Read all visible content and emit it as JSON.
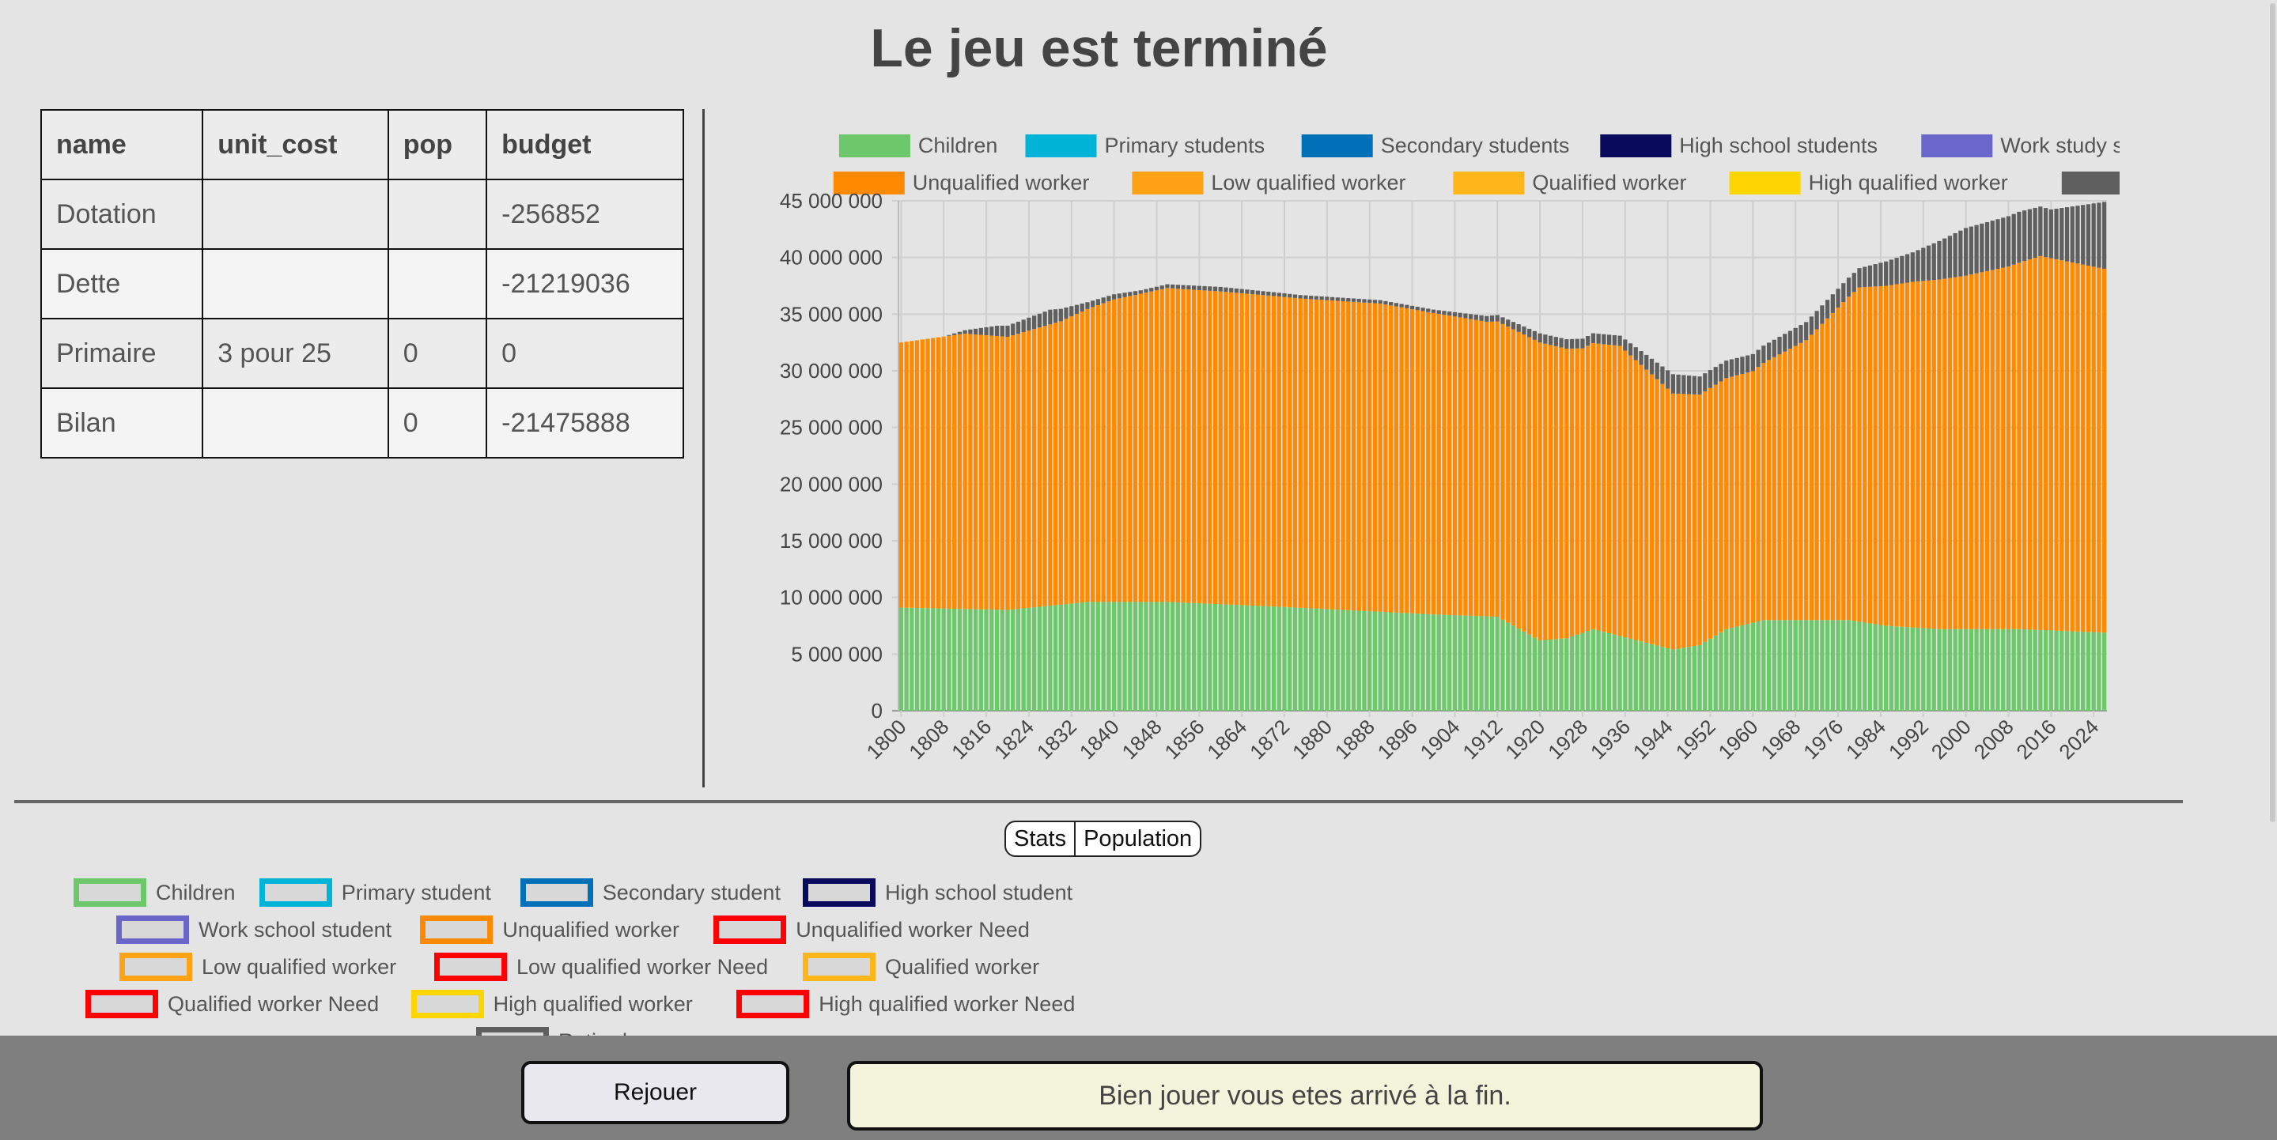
{
  "page": {
    "title": "Le jeu est terminé"
  },
  "budget_table": {
    "headers": [
      "name",
      "unit_cost",
      "pop",
      "budget"
    ],
    "rows": [
      [
        "Dotation",
        "",
        "",
        "-256852"
      ],
      [
        "Dette",
        "",
        "",
        "-21219036"
      ],
      [
        "Primaire",
        "3 pour 25",
        "0",
        "0"
      ],
      [
        "Bilan",
        "",
        "0",
        "-21475888"
      ]
    ]
  },
  "chart_data": {
    "type": "bar",
    "stacked": true,
    "x_start": 1800,
    "x_end": 2026,
    "x_step": 1,
    "x_tick_labels": [
      "1800",
      "1808",
      "1816",
      "1824",
      "1832",
      "1840",
      "1848",
      "1856",
      "1864",
      "1872",
      "1880",
      "1888",
      "1896",
      "1904",
      "1912",
      "1920",
      "1928",
      "1936",
      "1944",
      "1952",
      "1960",
      "1968",
      "1976",
      "1984",
      "1992",
      "2000",
      "2008",
      "2016",
      "2024"
    ],
    "y_ticks": [
      "0",
      "5 000 000",
      "10 000 000",
      "15 000 000",
      "20 000 000",
      "25 000 000",
      "30 000 000",
      "35 000 000",
      "40 000 000",
      "45 000 000"
    ],
    "ylim": [
      0,
      45000000
    ],
    "grid": true,
    "legend_position": "top",
    "series": [
      {
        "name": "Children",
        "color": "#6cc86a",
        "anchors": [
          [
            1800,
            9100000
          ],
          [
            1820,
            8900000
          ],
          [
            1835,
            9600000
          ],
          [
            1850,
            9600000
          ],
          [
            1870,
            9200000
          ],
          [
            1900,
            8500000
          ],
          [
            1912,
            8300000
          ],
          [
            1920,
            6200000
          ],
          [
            1925,
            6400000
          ],
          [
            1930,
            7200000
          ],
          [
            1945,
            5400000
          ],
          [
            1950,
            5800000
          ],
          [
            1955,
            7200000
          ],
          [
            1962,
            8000000
          ],
          [
            1978,
            8000000
          ],
          [
            1985,
            7500000
          ],
          [
            1995,
            7200000
          ],
          [
            2010,
            7200000
          ],
          [
            2026,
            6900000
          ]
        ]
      },
      {
        "name": "Primary students",
        "color": "#00b4d8",
        "anchors": [
          [
            1800,
            0
          ],
          [
            2026,
            0
          ]
        ]
      },
      {
        "name": "Secondary students",
        "color": "#0070b8",
        "anchors": [
          [
            1800,
            0
          ],
          [
            2026,
            0
          ]
        ]
      },
      {
        "name": "High school students",
        "color": "#0a0a5c",
        "anchors": [
          [
            1800,
            0
          ],
          [
            2026,
            0
          ]
        ]
      },
      {
        "name": "Work study students",
        "color": "#6b66c9",
        "anchors": [
          [
            1800,
            0
          ],
          [
            2026,
            0
          ]
        ]
      },
      {
        "name": "Unqualified worker",
        "color": "#ff8a00",
        "anchors": [
          [
            1800,
            23400000
          ],
          [
            1812,
            24300000
          ],
          [
            1820,
            24100000
          ],
          [
            1830,
            25000000
          ],
          [
            1840,
            26700000
          ],
          [
            1850,
            27700000
          ],
          [
            1860,
            27600000
          ],
          [
            1875,
            27300000
          ],
          [
            1890,
            27200000
          ],
          [
            1910,
            26000000
          ],
          [
            1920,
            26300000
          ],
          [
            1928,
            25100000
          ],
          [
            1935,
            25600000
          ],
          [
            1945,
            22600000
          ],
          [
            1950,
            22100000
          ],
          [
            1960,
            22200000
          ],
          [
            1970,
            24700000
          ],
          [
            1980,
            29500000
          ],
          [
            1990,
            30500000
          ],
          [
            2000,
            31200000
          ],
          [
            2008,
            32000000
          ],
          [
            2014,
            33000000
          ],
          [
            2026,
            32100000
          ]
        ]
      },
      {
        "name": "Low qualified worker",
        "color": "#ffa216",
        "anchors": [
          [
            1800,
            0
          ],
          [
            2026,
            0
          ]
        ]
      },
      {
        "name": "Qualified worker",
        "color": "#ffb61a",
        "anchors": [
          [
            1800,
            0
          ],
          [
            2026,
            0
          ]
        ]
      },
      {
        "name": "High qualified worker",
        "color": "#ffd500",
        "anchors": [
          [
            1800,
            0
          ],
          [
            2026,
            0
          ]
        ]
      },
      {
        "name": "Retired",
        "color": "#5f5f5f",
        "anchors": [
          [
            1800,
            0
          ],
          [
            1808,
            0
          ],
          [
            1812,
            300000
          ],
          [
            1818,
            900000
          ],
          [
            1828,
            1300000
          ],
          [
            1835,
            600000
          ],
          [
            1845,
            300000
          ],
          [
            1860,
            400000
          ],
          [
            1875,
            300000
          ],
          [
            1900,
            300000
          ],
          [
            1910,
            500000
          ],
          [
            1920,
            800000
          ],
          [
            1935,
            900000
          ],
          [
            1945,
            1700000
          ],
          [
            1950,
            1600000
          ],
          [
            1960,
            1500000
          ],
          [
            1970,
            1600000
          ],
          [
            1980,
            1700000
          ],
          [
            1990,
            2600000
          ],
          [
            2000,
            4200000
          ],
          [
            2010,
            4500000
          ],
          [
            2016,
            4300000
          ],
          [
            2026,
            5900000
          ]
        ]
      }
    ]
  },
  "tabs": [
    "Stats",
    "Population"
  ],
  "legend2": [
    {
      "label": "Children",
      "color": "#6cc86a"
    },
    {
      "label": "Primary student",
      "color": "#00b4d8"
    },
    {
      "label": "Secondary student",
      "color": "#0070b8"
    },
    {
      "label": "High school student",
      "color": "#0a0a5c"
    },
    {
      "label": "Work school student",
      "color": "#6b66c9"
    },
    {
      "label": "Unqualified worker",
      "color": "#ff8a00"
    },
    {
      "label": "Unqualified worker Need",
      "color": "#ff0000"
    },
    {
      "label": "Low qualified worker",
      "color": "#ffa216"
    },
    {
      "label": "Low qualified worker Need",
      "color": "#ff0000"
    },
    {
      "label": "Qualified worker",
      "color": "#ffb61a"
    },
    {
      "label": "Qualified worker Need",
      "color": "#ff0000"
    },
    {
      "label": "High qualified worker",
      "color": "#ffd500"
    },
    {
      "label": "High qualified worker Need",
      "color": "#ff0000"
    },
    {
      "label": "Retired",
      "color": "#5f5f5f"
    }
  ],
  "footer": {
    "replay_label": "Rejouer",
    "message": "Bien jouer vous etes arrivé à la fin."
  }
}
